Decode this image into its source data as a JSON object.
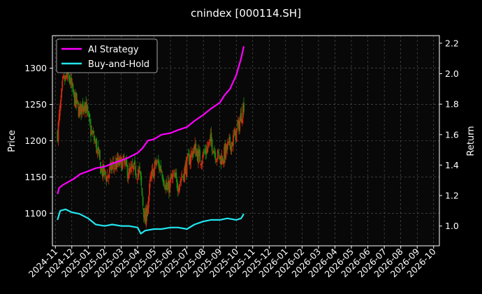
{
  "chart_data": {
    "type": "line",
    "title": "cnindex [000114.SH]",
    "ylabel_left": "Price",
    "ylabel_right": "Return",
    "ylim_left": [
      1055,
      1345
    ],
    "ylim_right": [
      0.87,
      2.25
    ],
    "yticks_left": [
      1100,
      1150,
      1200,
      1250,
      1300
    ],
    "yticks_right": [
      1.0,
      1.2,
      1.4,
      1.6,
      1.8,
      2.0,
      2.2
    ],
    "x_categories": [
      "2024-11",
      "2024-12",
      "2025-01",
      "2025-02",
      "2025-03",
      "2025-04",
      "2025-05",
      "2025-06",
      "2025-07",
      "2025-08",
      "2025-09",
      "2025-10",
      "2025-11",
      "2025-12",
      "2026-01",
      "2026-02",
      "2026-03",
      "2026-04",
      "2026-05",
      "2026-06",
      "2026-07",
      "2026-08",
      "2026-09",
      "2026-10"
    ],
    "grid": true,
    "legend_position": "top-left",
    "colors": {
      "ai_strategy": "#ff00ff",
      "buy_and_hold": "#22e5ee",
      "candle_up": "#d42a10",
      "candle_down": "#1a8a10"
    },
    "series": [
      {
        "name": "AI Strategy",
        "axis": "right",
        "x": [
          "2024-11-05",
          "2024-11-08",
          "2024-11-15",
          "2024-11-25",
          "2024-12-05",
          "2024-12-16",
          "2025-01-01",
          "2025-01-15",
          "2025-02-01",
          "2025-02-15",
          "2025-03-01",
          "2025-03-15",
          "2025-04-01",
          "2025-04-10",
          "2025-04-20",
          "2025-05-01",
          "2025-05-15",
          "2025-06-01",
          "2025-06-15",
          "2025-07-01",
          "2025-07-15",
          "2025-08-01",
          "2025-08-15",
          "2025-09-01",
          "2025-09-10",
          "2025-09-20",
          "2025-10-01",
          "2025-10-10",
          "2025-10-15"
        ],
        "values": [
          1.21,
          1.25,
          1.27,
          1.29,
          1.31,
          1.34,
          1.36,
          1.38,
          1.39,
          1.41,
          1.43,
          1.45,
          1.48,
          1.51,
          1.56,
          1.57,
          1.6,
          1.61,
          1.63,
          1.65,
          1.69,
          1.73,
          1.77,
          1.81,
          1.86,
          1.9,
          1.99,
          2.1,
          2.18
        ]
      },
      {
        "name": "Buy-and-Hold",
        "axis": "right",
        "x": [
          "2024-11-05",
          "2024-11-10",
          "2024-11-20",
          "2024-12-01",
          "2024-12-15",
          "2025-01-01",
          "2025-01-15",
          "2025-02-01",
          "2025-02-15",
          "2025-03-01",
          "2025-03-15",
          "2025-04-01",
          "2025-04-07",
          "2025-04-15",
          "2025-05-01",
          "2025-05-15",
          "2025-06-01",
          "2025-06-15",
          "2025-07-01",
          "2025-07-15",
          "2025-08-01",
          "2025-08-15",
          "2025-09-01",
          "2025-09-15",
          "2025-10-01",
          "2025-10-10",
          "2025-10-15"
        ],
        "values": [
          1.04,
          1.1,
          1.11,
          1.09,
          1.08,
          1.05,
          1.01,
          1.0,
          1.01,
          1.0,
          1.0,
          0.99,
          0.95,
          0.97,
          0.98,
          0.98,
          0.99,
          0.99,
          0.98,
          1.01,
          1.03,
          1.04,
          1.04,
          1.05,
          1.04,
          1.05,
          1.08
        ]
      }
    ],
    "price_series": {
      "name": "Price",
      "axis": "left",
      "type": "candlestick",
      "x": [
        "2024-11-05",
        "2024-11-15",
        "2024-11-25",
        "2024-12-05",
        "2024-12-15",
        "2024-12-25",
        "2025-01-05",
        "2025-01-15",
        "2025-01-25",
        "2025-02-05",
        "2025-02-15",
        "2025-02-25",
        "2025-03-05",
        "2025-03-15",
        "2025-03-25",
        "2025-04-05",
        "2025-04-15",
        "2025-04-25",
        "2025-05-05",
        "2025-05-15",
        "2025-05-25",
        "2025-06-05",
        "2025-06-15",
        "2025-06-25",
        "2025-07-05",
        "2025-07-15",
        "2025-07-25",
        "2025-08-05",
        "2025-08-15",
        "2025-08-25",
        "2025-09-05",
        "2025-09-15",
        "2025-09-25",
        "2025-10-05",
        "2025-10-15"
      ],
      "values": [
        1210,
        1280,
        1290,
        1260,
        1240,
        1255,
        1215,
        1195,
        1160,
        1150,
        1165,
        1168,
        1170,
        1155,
        1160,
        1155,
        1085,
        1145,
        1170,
        1160,
        1130,
        1150,
        1140,
        1155,
        1175,
        1190,
        1175,
        1185,
        1200,
        1180,
        1175,
        1190,
        1200,
        1220,
        1250
      ]
    }
  }
}
